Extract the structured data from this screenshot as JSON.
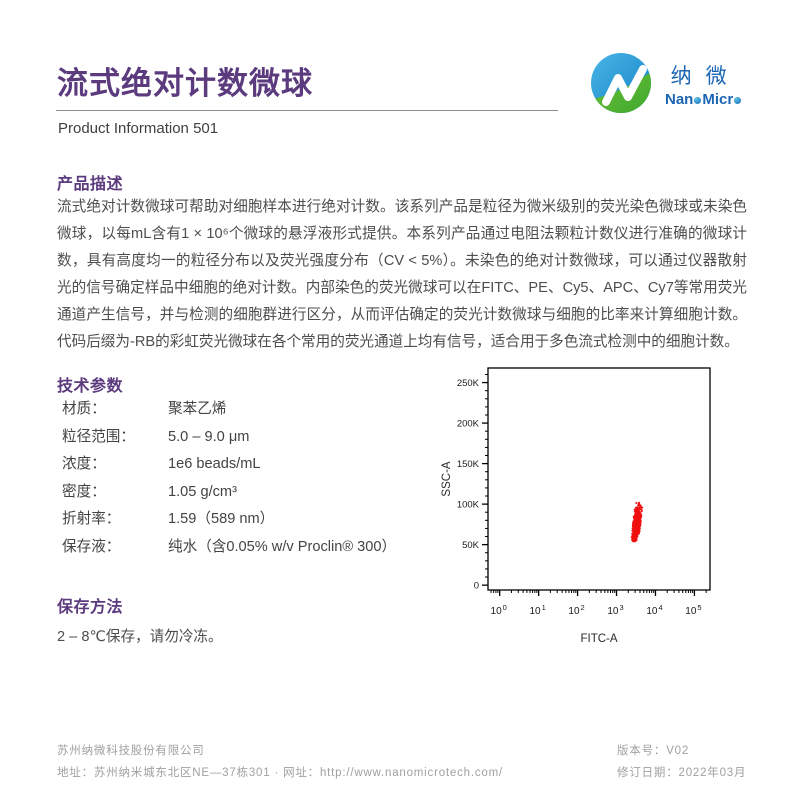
{
  "page": {
    "title": "流式绝对计数微球",
    "subtitle": "Product Information 501"
  },
  "logo": {
    "cn": "纳微",
    "en1": "Nan",
    "en2": "Micr"
  },
  "description": {
    "heading": "产品描述",
    "text": "流式绝对计数微球可帮助对细胞样本进行绝对计数。该系列产品是粒径为微米级别的荧光染色微球或未染色微球，以每mL含有1 × 10⁶个微球的悬浮液形式提供。本系列产品通过电阻法颗粒计数仪进行准确的微球计数，具有高度均一的粒径分布以及荧光强度分布（CV < 5%）。未染色的绝对计数微球，可以通过仪器散射光的信号确定样品中细胞的绝对计数。内部染色的荧光微球可以在FITC、PE、Cy5、APC、Cy7等常用荧光通道产生信号，并与检测的细胞群进行区分，从而评估确定的荧光计数微球与细胞的比率来计算细胞计数。代码后缀为-RB的彩虹荧光微球在各个常用的荧光通道上均有信号，适合用于多色流式检测中的细胞计数。"
  },
  "parameters": {
    "heading": "技术参数",
    "rows": [
      {
        "label": "材质：",
        "value": "聚苯乙烯"
      },
      {
        "label": "粒径范围：",
        "value": "5.0 – 9.0 μm"
      },
      {
        "label": "浓度：",
        "value": "1e6 beads/mL"
      },
      {
        "label": "密度：",
        "value": "1.05 g/cm³"
      },
      {
        "label": "折射率：",
        "value": "1.59（589 nm）"
      },
      {
        "label": "保存液：",
        "value": "纯水（含0.05% w/v Proclin® 300）"
      }
    ]
  },
  "storage": {
    "heading": "保存方法",
    "text": "2 – 8℃保存，请勿冷冻。"
  },
  "footer": {
    "company": "苏州纳微科技股份有限公司",
    "address": "地址：苏州纳米城东北区NE—37栋301 · 网址：http://www.nanomicrotech.com/",
    "version": "版本号：V02",
    "revision": "修订日期：2022年03月"
  },
  "colors": {
    "accent_purple": "#5b3a7e",
    "cluster_red": "#f01010",
    "logo_blue": "#2a9ed9",
    "logo_green": "#55b53c",
    "logo_text_blue": "#1b66b3",
    "footer_gray": "#a0a0a0"
  },
  "chart_data": {
    "type": "scatter",
    "title": "",
    "xlabel": "FITC-A",
    "ylabel": "SSC-A",
    "x_scale": "log",
    "x_tick_exponents": [
      0,
      1,
      2,
      3,
      4,
      5
    ],
    "x_view_log10": [
      -0.3,
      5.4
    ],
    "y_scale": "linear",
    "y_ticks": [
      {
        "value": 0,
        "label": "0"
      },
      {
        "value": 50000,
        "label": "50K"
      },
      {
        "value": 100000,
        "label": "100K"
      },
      {
        "value": 150000,
        "label": "150K"
      },
      {
        "value": 200000,
        "label": "200K"
      },
      {
        "value": 250000,
        "label": "250K"
      }
    ],
    "y_view": [
      -6000,
      268000
    ],
    "y_minor_step": 10000,
    "grid": false,
    "legend": false,
    "series": [
      {
        "name": "counting-beads-population",
        "marker_color": "#f01010",
        "n_points": 700,
        "center": {
          "x_log10": 3.52,
          "y": 76000
        },
        "sigma": {
          "x_log10": 0.048,
          "y": 9500
        },
        "xy_correlation": 0.45,
        "x_range_approx": [
          2000,
          6000
        ],
        "y_range_approx": [
          55000,
          102000
        ]
      }
    ]
  }
}
